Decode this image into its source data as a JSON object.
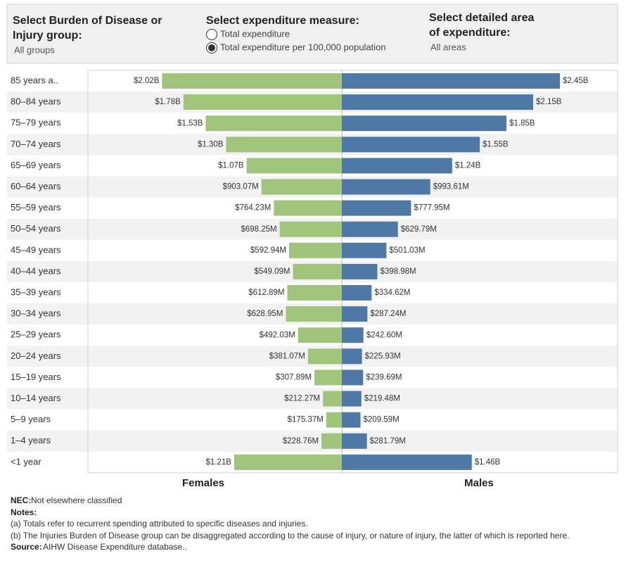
{
  "controls": {
    "disease": {
      "title_line1": "Select Burden of Disease or",
      "title_line2": "Injury group:",
      "value": "All groups"
    },
    "measure": {
      "title": "Select expenditure measure:",
      "options": [
        "Total expenditure",
        "Total expenditure per 100,000 population"
      ],
      "selected": 1
    },
    "area": {
      "title_line1": "Select detailed area",
      "title_line2": "of expenditure:",
      "value": "All areas"
    }
  },
  "chart_data": {
    "type": "pyramid",
    "categories": [
      "85 years a..",
      "80–84 years",
      "75–79 years",
      "70–74 years",
      "65–69 years",
      "60–64 years",
      "55–59 years",
      "50–54 years",
      "45–49 years",
      "40–44 years",
      "35–39 years",
      "30–34 years",
      "25–29 years",
      "20–24 years",
      "15–19 years",
      "10–14 years",
      "5–9 years",
      "1–4 years",
      "<1 year"
    ],
    "series": [
      {
        "name": "Females",
        "color": "#a0c57a",
        "values": [
          2020000000,
          1780000000,
          1530000000,
          1300000000,
          1070000000,
          903070000,
          764230000,
          698250000,
          592940000,
          549090000,
          612890000,
          628950000,
          492030000,
          381070000,
          307890000,
          212270000,
          175370000,
          228760000,
          1210000000
        ],
        "value_labels": [
          "$2.02B",
          "$1.78B",
          "$1.53B",
          "$1.30B",
          "$1.07B",
          "$903.07M",
          "$764.23M",
          "$698.25M",
          "$592.94M",
          "$549.09M",
          "$612.89M",
          "$628.95M",
          "$492.03M",
          "$381.07M",
          "$307.89M",
          "$212.27M",
          "$175.37M",
          "$228.76M",
          "$1.21B"
        ]
      },
      {
        "name": "Males",
        "color": "#4e79a7",
        "values": [
          2450000000,
          2150000000,
          1850000000,
          1550000000,
          1240000000,
          993610000,
          777950000,
          629790000,
          501030000,
          398980000,
          334620000,
          287240000,
          242600000,
          225930000,
          239690000,
          219480000,
          209590000,
          281790000,
          1460000000
        ],
        "value_labels": [
          "$2.45B",
          "$2.15B",
          "$1.85B",
          "$1.55B",
          "$1.24B",
          "$993.61M",
          "$777.95M",
          "$629.79M",
          "$501.03M",
          "$398.98M",
          "$334.62M",
          "$287.24M",
          "$242.60M",
          "$225.93M",
          "$239.69M",
          "$219.48M",
          "$209.59M",
          "$281.79M",
          "$1.46B"
        ]
      }
    ]
  },
  "footnotes": {
    "nec_label": "NEC:",
    "nec_text": "Not elsewhere classified",
    "notes_label": "Notes:",
    "notes": [
      "(a) Totals refer to recurrent spending attributed to specific diseases and injuries.",
      "(b) The Injuries Burden of Disease group can be disaggregated according to the cause of injury, or nature of injury, the latter of which is reported here."
    ],
    "source_label": "Source:",
    "source_text": "AIHW Disease Expenditure database.."
  }
}
